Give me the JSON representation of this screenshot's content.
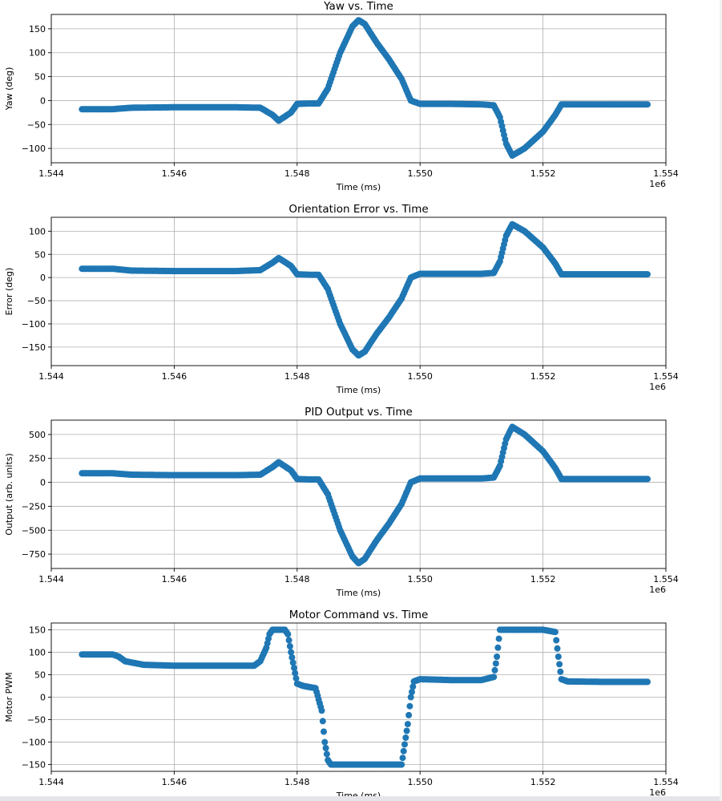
{
  "colors": {
    "series": "#1f77b4",
    "grid": "#b0b0b0",
    "axis": "#000000",
    "background": "#ffffff"
  },
  "chart_data": [
    {
      "type": "scatter",
      "title": "Yaw vs. Time",
      "xlabel": "Time (ms)",
      "ylabel": "Yaw (deg)",
      "x_offset_label": "1e6",
      "xlim": [
        1544000,
        1554000
      ],
      "ylim": [
        -130,
        180
      ],
      "xticks": [
        1544000,
        1546000,
        1548000,
        1550000,
        1552000,
        1554000
      ],
      "xtick_labels": [
        "1.544",
        "1.546",
        "1.548",
        "1.550",
        "1.552",
        "1.554"
      ],
      "yticks": [
        -100,
        -50,
        0,
        50,
        100,
        150
      ],
      "ytick_labels": [
        "−100",
        "−50",
        "0",
        "50",
        "100",
        "150"
      ],
      "grid": true,
      "series": [
        {
          "x": [
            1544500,
            1545000,
            1545300,
            1546000,
            1547000,
            1547400,
            1547600,
            1547700,
            1547900,
            1548000,
            1548200,
            1548350,
            1548500,
            1548700,
            1548900,
            1549000,
            1549100,
            1549300,
            1549500,
            1549700,
            1549850,
            1550000,
            1550500,
            1551000,
            1551200,
            1551300,
            1551400,
            1551500,
            1551700,
            1552000,
            1552200,
            1552300,
            1552600,
            1553000,
            1553500,
            1553700
          ],
          "y": [
            -18,
            -18,
            -15,
            -14,
            -14,
            -15,
            -30,
            -42,
            -25,
            -7,
            -6,
            -6,
            25,
            100,
            155,
            168,
            160,
            120,
            85,
            45,
            0,
            -7,
            -7,
            -8,
            -10,
            -35,
            -90,
            -115,
            -100,
            -65,
            -30,
            -8,
            -8,
            -8,
            -8,
            -8
          ]
        }
      ]
    },
    {
      "type": "scatter",
      "title": "Orientation Error vs. Time",
      "xlabel": "Time (ms)",
      "ylabel": "Error (deg)",
      "x_offset_label": "1e6",
      "xlim": [
        1544000,
        1554000
      ],
      "ylim": [
        -190,
        130
      ],
      "xticks": [
        1544000,
        1546000,
        1548000,
        1550000,
        1552000,
        1554000
      ],
      "xtick_labels": [
        "1.544",
        "1.546",
        "1.548",
        "1.550",
        "1.552",
        "1.554"
      ],
      "yticks": [
        -150,
        -100,
        -50,
        0,
        50,
        100
      ],
      "ytick_labels": [
        "−150",
        "−100",
        "−50",
        "0",
        "50",
        "100"
      ],
      "grid": true,
      "series": [
        {
          "x": [
            1544500,
            1545000,
            1545300,
            1546000,
            1547000,
            1547400,
            1547600,
            1547700,
            1547900,
            1548000,
            1548200,
            1548350,
            1548500,
            1548700,
            1548900,
            1549000,
            1549100,
            1549300,
            1549500,
            1549700,
            1549850,
            1550000,
            1550500,
            1551000,
            1551200,
            1551300,
            1551400,
            1551500,
            1551700,
            1552000,
            1552200,
            1552300,
            1552600,
            1553000,
            1553500,
            1553700
          ],
          "y": [
            19,
            19,
            15,
            14,
            14,
            16,
            32,
            42,
            25,
            7,
            6,
            6,
            -25,
            -100,
            -155,
            -168,
            -160,
            -120,
            -85,
            -45,
            0,
            8,
            8,
            8,
            10,
            35,
            90,
            115,
            100,
            65,
            30,
            7,
            7,
            7,
            7,
            7
          ]
        }
      ]
    },
    {
      "type": "scatter",
      "title": "PID Output vs. Time",
      "xlabel": "Time (ms)",
      "ylabel": "Output (arb. units)",
      "x_offset_label": "1e6",
      "xlim": [
        1544000,
        1554000
      ],
      "ylim": [
        -900,
        650
      ],
      "xticks": [
        1544000,
        1546000,
        1548000,
        1550000,
        1552000,
        1554000
      ],
      "xtick_labels": [
        "1.544",
        "1.546",
        "1.548",
        "1.550",
        "1.552",
        "1.554"
      ],
      "yticks": [
        -750,
        -500,
        -250,
        0,
        250,
        500
      ],
      "ytick_labels": [
        "−750",
        "−500",
        "−250",
        "0",
        "250",
        "500"
      ],
      "grid": true,
      "series": [
        {
          "x": [
            1544500,
            1545000,
            1545300,
            1546000,
            1547000,
            1547400,
            1547600,
            1547700,
            1547900,
            1548000,
            1548200,
            1548350,
            1548500,
            1548700,
            1548900,
            1549000,
            1549100,
            1549300,
            1549500,
            1549700,
            1549850,
            1550000,
            1550500,
            1551000,
            1551200,
            1551300,
            1551400,
            1551500,
            1551700,
            1552000,
            1552200,
            1552300,
            1552600,
            1553000,
            1553500,
            1553700
          ],
          "y": [
            95,
            95,
            80,
            75,
            75,
            80,
            160,
            210,
            125,
            35,
            30,
            30,
            -125,
            -500,
            -775,
            -845,
            -800,
            -600,
            -425,
            -225,
            0,
            40,
            40,
            40,
            50,
            175,
            450,
            580,
            500,
            325,
            150,
            35,
            35,
            35,
            35,
            35
          ]
        }
      ]
    },
    {
      "type": "scatter",
      "title": "Motor Command vs. Time",
      "xlabel": "Time (ms)",
      "ylabel": "Motor PWM",
      "x_offset_label": "1e6",
      "xlim": [
        1544000,
        1554000
      ],
      "ylim": [
        -165,
        165
      ],
      "xticks": [
        1544000,
        1546000,
        1548000,
        1550000,
        1552000,
        1554000
      ],
      "xtick_labels": [
        "1.544",
        "1.546",
        "1.548",
        "1.550",
        "1.552",
        "1.554"
      ],
      "yticks": [
        -150,
        -100,
        -50,
        0,
        50,
        100,
        150
      ],
      "ytick_labels": [
        "−150",
        "−100",
        "−50",
        "0",
        "50",
        "100",
        "150"
      ],
      "grid": true,
      "series": [
        {
          "x": [
            1544500,
            1545000,
            1545100,
            1545200,
            1545500,
            1546000,
            1547000,
            1547300,
            1547400,
            1547500,
            1547550,
            1547600,
            1547800,
            1547850,
            1547900,
            1548000,
            1548100,
            1548300,
            1548400,
            1548450,
            1548500,
            1548550,
            1548600,
            1549000,
            1549500,
            1549700,
            1549800,
            1549850,
            1549900,
            1550000,
            1550500,
            1551000,
            1551200,
            1551250,
            1551300,
            1551500,
            1552000,
            1552200,
            1552250,
            1552300,
            1552400,
            1553000,
            1553500,
            1553700
          ],
          "y": [
            95,
            95,
            90,
            80,
            72,
            70,
            70,
            70,
            80,
            110,
            140,
            150,
            150,
            140,
            100,
            30,
            25,
            20,
            -30,
            -100,
            -140,
            -150,
            -150,
            -150,
            -150,
            -150,
            -60,
            0,
            35,
            40,
            38,
            38,
            45,
            90,
            150,
            150,
            150,
            145,
            90,
            40,
            35,
            34,
            34,
            34
          ]
        }
      ]
    }
  ]
}
